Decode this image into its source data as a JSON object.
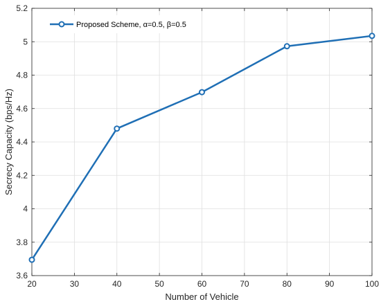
{
  "chart_data": {
    "type": "line",
    "xlabel": "Number of Vehicle",
    "ylabel": "Secrecy Capacity (bps/Hz)",
    "xlim": [
      20,
      100
    ],
    "ylim": [
      3.6,
      5.2
    ],
    "xticks": [
      20,
      30,
      40,
      50,
      60,
      70,
      80,
      90,
      100
    ],
    "xtick_labels": [
      "20",
      "30",
      "40",
      "50",
      "60",
      "70",
      "80",
      "90",
      "100"
    ],
    "yticks": [
      3.6,
      3.8,
      4.0,
      4.2,
      4.4,
      4.6,
      4.8,
      5.0,
      5.2
    ],
    "ytick_labels": [
      "3.6",
      "3.8",
      "4",
      "4.2",
      "4.4",
      "4.6",
      "4.8",
      "5",
      "5.2"
    ],
    "grid": true,
    "legend_position": "top-left",
    "series": [
      {
        "name": "Proposed Scheme, α=0.5, β=0.5",
        "color": "#1f6fb5",
        "marker": "circle",
        "x": [
          20,
          40,
          60,
          80,
          100
        ],
        "y": [
          3.695,
          4.48,
          4.698,
          4.973,
          5.035
        ]
      }
    ]
  }
}
